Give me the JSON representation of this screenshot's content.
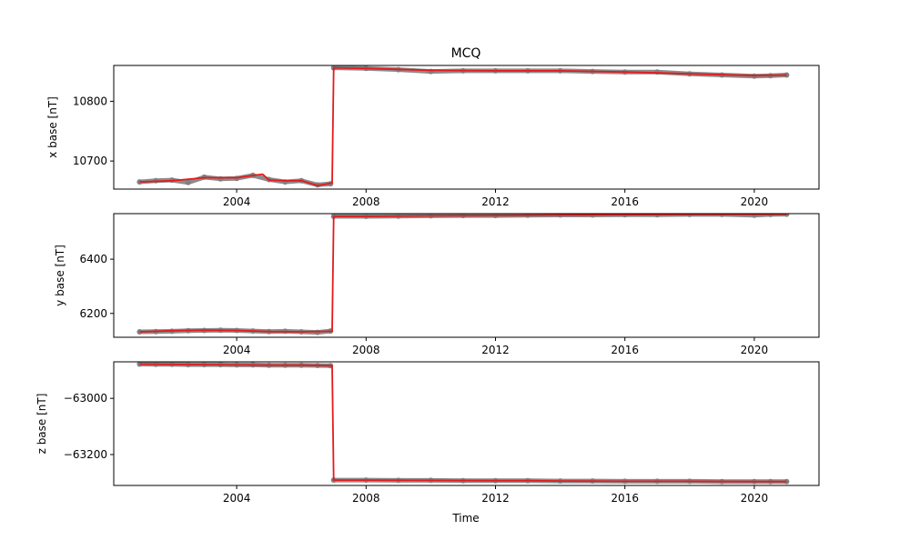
{
  "figure": {
    "title": "MCQ",
    "xlabel": "Time"
  },
  "colors": {
    "points": "#808080",
    "smooth": "#e41a1c",
    "frame": "#000000",
    "background": "#ffffff"
  },
  "chart_data": [
    {
      "type": "line",
      "name": "x-panel",
      "ylabel": "x base [nT]",
      "xlim": [
        2000.2,
        2022.0
      ],
      "ylim": [
        10653,
        10860
      ],
      "yticks": [
        10700,
        10800
      ],
      "xticks": [
        2004,
        2008,
        2012,
        2016,
        2020
      ],
      "series": [
        {
          "kind": "scatter",
          "color": "#808080",
          "x": [
            2001.0,
            2001.5,
            2002.0,
            2002.5,
            2003.0,
            2003.5,
            2004.0,
            2004.5,
            2005.0,
            2005.5,
            2006.0,
            2006.5,
            2006.9,
            2007.0,
            2008.0,
            2009.0,
            2010.0,
            2011.0,
            2012.0,
            2013.0,
            2014.0,
            2015.0,
            2016.0,
            2017.0,
            2018.0,
            2019.0,
            2020.0,
            2020.5,
            2021.0
          ],
          "values": [
            10665,
            10667,
            10668,
            10664,
            10673,
            10670,
            10671,
            10676,
            10669,
            10665,
            10667,
            10660,
            10662,
            10856,
            10855,
            10853,
            10850,
            10851,
            10851,
            10851,
            10851,
            10850,
            10849,
            10849,
            10846,
            10844,
            10842,
            10843,
            10844
          ]
        },
        {
          "kind": "line",
          "color": "#e41a1c",
          "x": [
            2001.0,
            2002.0,
            2003.0,
            2004.0,
            2004.8,
            2005.0,
            2005.5,
            2006.0,
            2006.5,
            2006.95,
            2007.0,
            2008.0,
            2010.0,
            2012.0,
            2014.0,
            2016.0,
            2018.0,
            2020.0,
            2021.0
          ],
          "values": [
            10665,
            10667,
            10672,
            10672,
            10678,
            10668,
            10667,
            10667,
            10659,
            10663,
            10856,
            10855,
            10852,
            10851,
            10851,
            10849,
            10846,
            10843,
            10844
          ]
        }
      ]
    },
    {
      "type": "line",
      "name": "y-panel",
      "ylabel": "y base [nT]",
      "xlim": [
        2000.2,
        2022.0
      ],
      "ylim": [
        6112,
        6568
      ],
      "yticks": [
        6200,
        6400
      ],
      "xticks": [
        2004,
        2008,
        2012,
        2016,
        2020
      ],
      "series": [
        {
          "kind": "scatter",
          "color": "#808080",
          "x": [
            2001.0,
            2001.5,
            2002.0,
            2002.5,
            2003.0,
            2003.5,
            2004.0,
            2004.5,
            2005.0,
            2005.5,
            2006.0,
            2006.5,
            2006.9,
            2007.0,
            2008.0,
            2009.0,
            2010.0,
            2011.0,
            2012.0,
            2013.0,
            2014.0,
            2015.0,
            2016.0,
            2017.0,
            2018.0,
            2019.0,
            2020.0,
            2020.5,
            2021.0
          ],
          "values": [
            6132,
            6133,
            6134,
            6136,
            6137,
            6138,
            6137,
            6135,
            6133,
            6134,
            6132,
            6130,
            6135,
            6558,
            6558,
            6559,
            6560,
            6561,
            6561,
            6562,
            6563,
            6563,
            6564,
            6564,
            6565,
            6565,
            6562,
            6565,
            6566
          ]
        },
        {
          "kind": "line",
          "color": "#e41a1c",
          "x": [
            2001.0,
            2002.0,
            2003.0,
            2004.0,
            2005.0,
            2006.0,
            2006.95,
            2007.0,
            2008.0,
            2010.0,
            2012.0,
            2014.0,
            2016.0,
            2018.0,
            2020.0,
            2021.0
          ],
          "values": [
            6132,
            6136,
            6138,
            6137,
            6133,
            6132,
            6134,
            6558,
            6558,
            6560,
            6561,
            6563,
            6564,
            6565,
            6565,
            6566
          ]
        }
      ]
    },
    {
      "type": "line",
      "name": "z-panel",
      "ylabel": "z base [nT]",
      "xlim": [
        2000.2,
        2022.0
      ],
      "ylim": [
        -63310,
        -62870
      ],
      "yticks": [
        -63000,
        -63200
      ],
      "yticklabels": [
        "−63000",
        "−63200"
      ],
      "xticks": [
        2004,
        2008,
        2012,
        2016,
        2020
      ],
      "series": [
        {
          "kind": "scatter",
          "color": "#808080",
          "x": [
            2001.0,
            2001.5,
            2002.0,
            2002.5,
            2003.0,
            2003.5,
            2004.0,
            2004.5,
            2005.0,
            2005.5,
            2006.0,
            2006.5,
            2006.9,
            2007.0,
            2008.0,
            2009.0,
            2010.0,
            2011.0,
            2012.0,
            2013.0,
            2014.0,
            2015.0,
            2016.0,
            2017.0,
            2018.0,
            2019.0,
            2020.0,
            2020.5,
            2021.0
          ],
          "values": [
            -62878,
            -62879,
            -62879,
            -62880,
            -62880,
            -62880,
            -62881,
            -62881,
            -62882,
            -62882,
            -62882,
            -62883,
            -62884,
            -63291,
            -63291,
            -63292,
            -63292,
            -63293,
            -63293,
            -63293,
            -63294,
            -63294,
            -63295,
            -63295,
            -63295,
            -63296,
            -63296,
            -63296,
            -63296
          ]
        },
        {
          "kind": "line",
          "color": "#e41a1c",
          "x": [
            2001.0,
            2002.0,
            2003.0,
            2004.0,
            2005.0,
            2006.0,
            2006.95,
            2007.0,
            2008.0,
            2010.0,
            2012.0,
            2013.0,
            2014.0,
            2016.0,
            2018.0,
            2020.0,
            2021.0
          ],
          "values": [
            -62878,
            -62879,
            -62880,
            -62881,
            -62882,
            -62882,
            -62884,
            -63291,
            -63291,
            -63292,
            -63293,
            -63293,
            -63294,
            -63295,
            -63295,
            -63296,
            -63296
          ]
        }
      ]
    }
  ]
}
